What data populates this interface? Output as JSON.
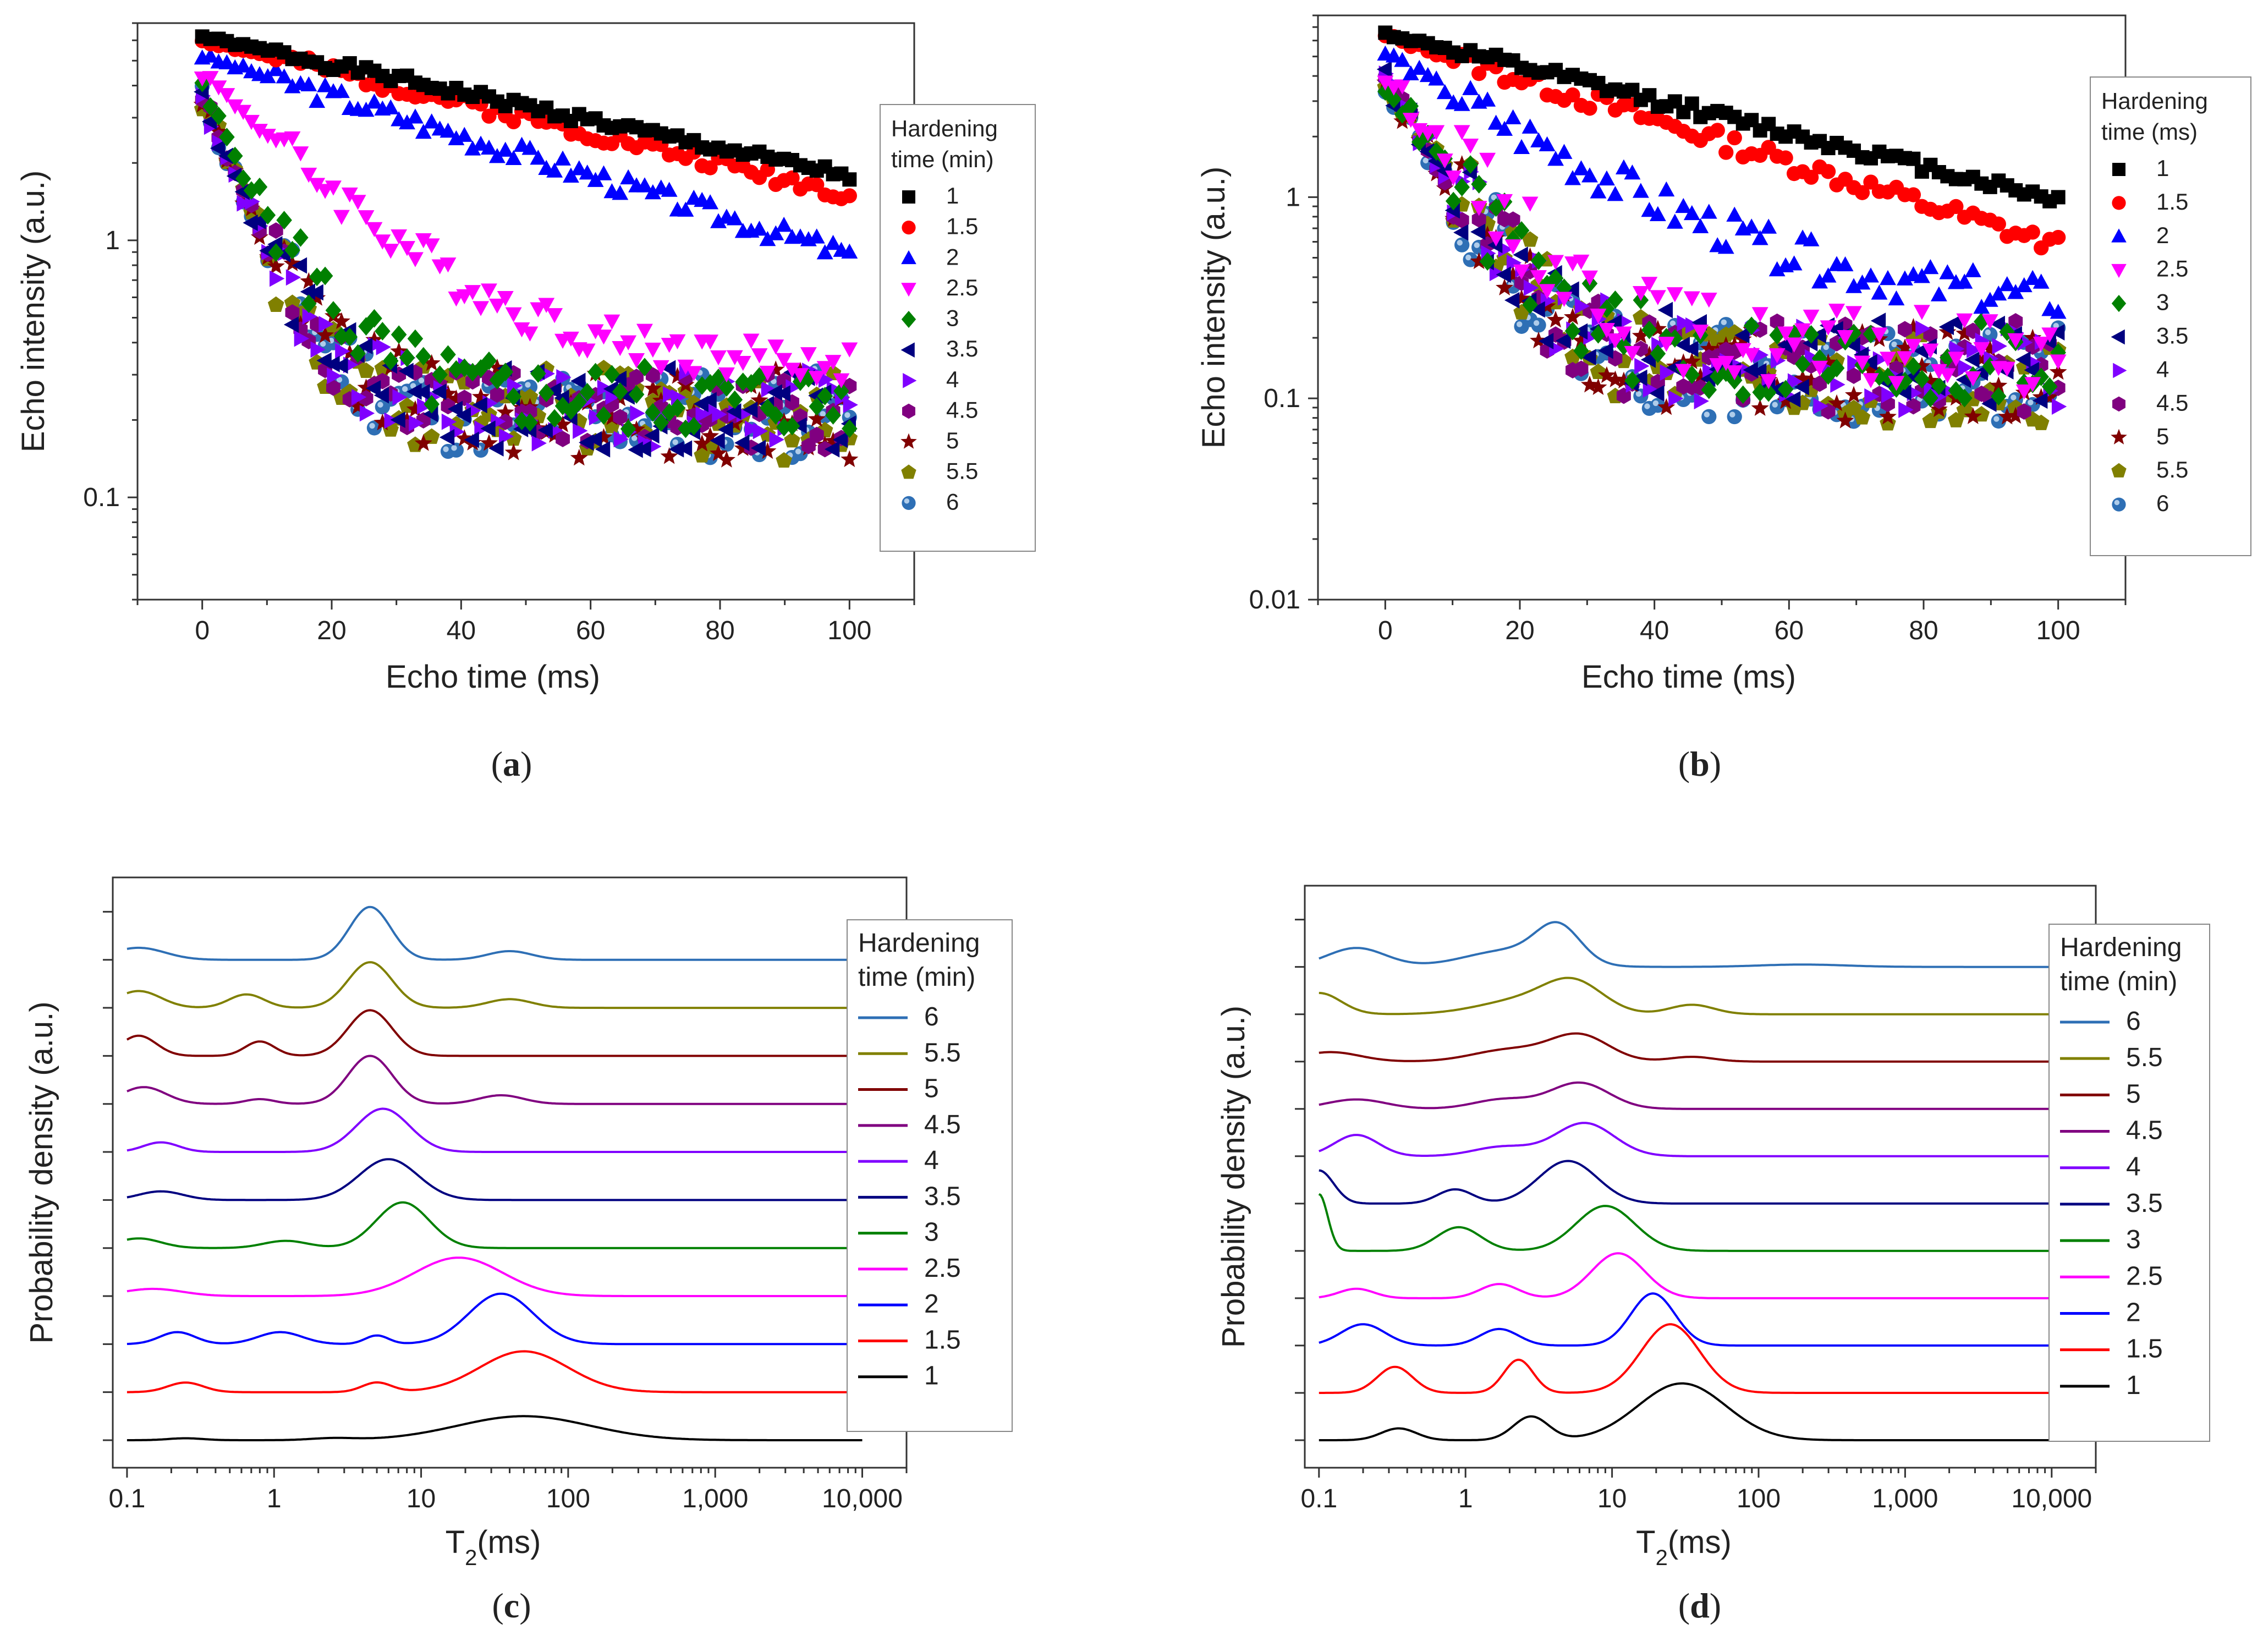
{
  "figure": {
    "panel_labels": [
      "(a)",
      "(b)",
      "(c)",
      "(d)"
    ]
  },
  "series_styles": [
    {
      "label": "1",
      "color": "#000000",
      "marker": "square"
    },
    {
      "label": "1.5",
      "color": "#ff0000",
      "marker": "circle"
    },
    {
      "label": "2",
      "color": "#0000ff",
      "marker": "triangle-up"
    },
    {
      "label": "2.5",
      "color": "#ff00ff",
      "marker": "triangle-down"
    },
    {
      "label": "3",
      "color": "#008000",
      "marker": "diamond"
    },
    {
      "label": "3.5",
      "color": "#000080",
      "marker": "triangle-left"
    },
    {
      "label": "4",
      "color": "#8000ff",
      "marker": "triangle-right"
    },
    {
      "label": "4.5",
      "color": "#800080",
      "marker": "hexagon"
    },
    {
      "label": "5",
      "color": "#800000",
      "marker": "star"
    },
    {
      "label": "5.5",
      "color": "#808000",
      "marker": "pentagon"
    },
    {
      "label": "6",
      "color": "#2e6fb5",
      "marker": "sphere"
    }
  ],
  "chart_data": [
    {
      "id": "a",
      "type": "scatter",
      "xlabel": "Echo time (ms)",
      "ylabel": "Echo intensity (a.u.)",
      "xlim": [
        -10,
        110
      ],
      "ylim": [
        0.04,
        7
      ],
      "yscale": "log",
      "xticks": [
        0,
        20,
        40,
        60,
        80,
        100
      ],
      "yticks": [
        {
          "v": 0.1,
          "label": "0.1"
        },
        {
          "v": 1,
          "label": "1"
        }
      ],
      "legend": {
        "title": [
          "Hardening",
          "time (min)"
        ],
        "position": "right"
      },
      "series": [
        {
          "name": "1",
          "start": 6.2,
          "plateau": 0,
          "k": 0.0125,
          "noise": 0.02,
          "seed": 1
        },
        {
          "name": "1.5",
          "start": 6.0,
          "plateau": 0,
          "k": 0.0138,
          "noise": 0.03,
          "seed": 2
        },
        {
          "name": "2",
          "start": 5.2,
          "plateau": 0,
          "k": 0.0178,
          "noise": 0.04,
          "seed": 3
        },
        {
          "name": "2.5",
          "start": 4.5,
          "plateau": 0.32,
          "k": 0.06,
          "noise": 0.08,
          "seed": 4
        },
        {
          "name": "3",
          "start": 3.8,
          "plateau": 0.24,
          "k": 0.12,
          "noise": 0.14,
          "seed": 5
        },
        {
          "name": "3.5",
          "start": 3.6,
          "plateau": 0.22,
          "k": 0.15,
          "noise": 0.16,
          "seed": 6
        },
        {
          "name": "4",
          "start": 3.6,
          "plateau": 0.22,
          "k": 0.15,
          "noise": 0.16,
          "seed": 7
        },
        {
          "name": "4.5",
          "start": 3.6,
          "plateau": 0.22,
          "k": 0.15,
          "noise": 0.16,
          "seed": 8
        },
        {
          "name": "5",
          "start": 3.6,
          "plateau": 0.21,
          "k": 0.15,
          "noise": 0.18,
          "seed": 9
        },
        {
          "name": "5.5",
          "start": 3.6,
          "plateau": 0.21,
          "k": 0.15,
          "noise": 0.18,
          "seed": 10
        },
        {
          "name": "6",
          "start": 3.6,
          "plateau": 0.21,
          "k": 0.15,
          "noise": 0.18,
          "seed": 11
        }
      ]
    },
    {
      "id": "b",
      "type": "scatter",
      "xlabel": "Echo time (ms)",
      "ylabel": "Echo intensity (a.u.)",
      "xlim": [
        -10,
        110
      ],
      "ylim": [
        0.01,
        8
      ],
      "yscale": "log",
      "xticks": [
        0,
        20,
        40,
        60,
        80,
        100
      ],
      "yticks": [
        {
          "v": 0.01,
          "label": "0.01"
        },
        {
          "v": 0.1,
          "label": "0.1"
        },
        {
          "v": 1,
          "label": "1"
        }
      ],
      "legend": {
        "title": [
          "Hardening",
          "time (ms)"
        ],
        "position": "right"
      },
      "series": [
        {
          "name": "1",
          "start": 6.5,
          "plateau": 0,
          "k": 0.019,
          "noise": 0.03,
          "seed": 12
        },
        {
          "name": "1.5",
          "start": 6.3,
          "plateau": 0,
          "k": 0.024,
          "noise": 0.05,
          "seed": 13
        },
        {
          "name": "2",
          "start": 5.2,
          "plateau": 0.28,
          "k": 0.05,
          "noise": 0.1,
          "seed": 14
        },
        {
          "name": "2.5",
          "start": 4.0,
          "plateau": 0.17,
          "k": 0.1,
          "noise": 0.2,
          "seed": 15
        },
        {
          "name": "3",
          "start": 3.8,
          "plateau": 0.15,
          "k": 0.12,
          "noise": 0.22,
          "seed": 16
        },
        {
          "name": "3.5",
          "start": 3.8,
          "plateau": 0.15,
          "k": 0.13,
          "noise": 0.22,
          "seed": 17
        },
        {
          "name": "4",
          "start": 3.8,
          "plateau": 0.14,
          "k": 0.13,
          "noise": 0.22,
          "seed": 18
        },
        {
          "name": "4.5",
          "start": 3.8,
          "plateau": 0.14,
          "k": 0.13,
          "noise": 0.24,
          "seed": 19
        },
        {
          "name": "5",
          "start": 3.8,
          "plateau": 0.13,
          "k": 0.13,
          "noise": 0.24,
          "seed": 20
        },
        {
          "name": "5.5",
          "start": 3.8,
          "plateau": 0.13,
          "k": 0.13,
          "noise": 0.24,
          "seed": 21
        },
        {
          "name": "6",
          "start": 3.8,
          "plateau": 0.13,
          "k": 0.13,
          "noise": 0.24,
          "seed": 22
        }
      ]
    },
    {
      "id": "c",
      "type": "line",
      "xlabel": "T2(ms)",
      "ylabel": "Probability density (a.u.)",
      "xscale": "log",
      "xlim": [
        0.08,
        20000
      ],
      "xticks": [
        {
          "v": 0.1,
          "label": "0.1"
        },
        {
          "v": 1,
          "label": "1"
        },
        {
          "v": 10,
          "label": "10"
        },
        {
          "v": 100,
          "label": "100"
        },
        {
          "v": 1000,
          "label": "1,000"
        },
        {
          "v": 10000,
          "label": "10,000"
        }
      ],
      "legend": {
        "title": [
          "Hardening",
          "time (min)"
        ],
        "position": "right"
      },
      "series": [
        {
          "name": "1",
          "baseline": 0.0,
          "peaks": [
            [
              0.25,
              0.04,
              0.12
            ],
            [
              2.5,
              0.04,
              0.15
            ],
            [
              50,
              0.5,
              0.45
            ]
          ]
        },
        {
          "name": "1.5",
          "baseline": 1.0,
          "peaks": [
            [
              0.25,
              0.2,
              0.12
            ],
            [
              5,
              0.2,
              0.1
            ],
            [
              50,
              0.85,
              0.3
            ]
          ]
        },
        {
          "name": "2",
          "baseline": 2.0,
          "peaks": [
            [
              0.22,
              0.25,
              0.12
            ],
            [
              1.1,
              0.25,
              0.15
            ],
            [
              5,
              0.18,
              0.08
            ],
            [
              35,
              1.05,
              0.22
            ]
          ]
        },
        {
          "name": "2.5",
          "baseline": 3.0,
          "peaks": [
            [
              0.15,
              0.15,
              0.2
            ],
            [
              18,
              0.8,
              0.3
            ]
          ]
        },
        {
          "name": "3",
          "baseline": 4.0,
          "peaks": [
            [
              0.12,
              0.2,
              0.15
            ],
            [
              1.2,
              0.15,
              0.15
            ],
            [
              7.5,
              0.95,
              0.18
            ]
          ]
        },
        {
          "name": "3.5",
          "baseline": 5.0,
          "peaks": [
            [
              0.17,
              0.18,
              0.15
            ],
            [
              6,
              0.85,
              0.2
            ]
          ]
        },
        {
          "name": "4",
          "baseline": 6.0,
          "peaks": [
            [
              0.17,
              0.2,
              0.12
            ],
            [
              5.5,
              0.9,
              0.18
            ]
          ]
        },
        {
          "name": "4.5",
          "baseline": 7.0,
          "peaks": [
            [
              0.13,
              0.35,
              0.15
            ],
            [
              0.8,
              0.1,
              0.1
            ],
            [
              4.5,
              1.0,
              0.15
            ],
            [
              35,
              0.18,
              0.15
            ]
          ]
        },
        {
          "name": "5",
          "baseline": 8.0,
          "peaks": [
            [
              0.12,
              0.42,
              0.12
            ],
            [
              0.8,
              0.3,
              0.1
            ],
            [
              4.5,
              0.95,
              0.15
            ]
          ]
        },
        {
          "name": "5.5",
          "baseline": 9.0,
          "peaks": [
            [
              0.12,
              0.35,
              0.15
            ],
            [
              0.65,
              0.28,
              0.12
            ],
            [
              4.5,
              0.95,
              0.15
            ],
            [
              40,
              0.18,
              0.15
            ]
          ]
        },
        {
          "name": "6",
          "baseline": 10.0,
          "peaks": [
            [
              0.12,
              0.25,
              0.18
            ],
            [
              4.5,
              1.1,
              0.14
            ],
            [
              40,
              0.18,
              0.15
            ]
          ]
        }
      ]
    },
    {
      "id": "d",
      "type": "line",
      "xlabel": "T2(ms)",
      "ylabel": "Probability density (a.u.)",
      "xscale": "log",
      "xlim": [
        0.08,
        20000
      ],
      "xticks": [
        {
          "v": 0.1,
          "label": "0.1"
        },
        {
          "v": 1,
          "label": "1"
        },
        {
          "v": 10,
          "label": "10"
        },
        {
          "v": 100,
          "label": "100"
        },
        {
          "v": 1000,
          "label": "1,000"
        },
        {
          "v": 10000,
          "label": "10,000"
        }
      ],
      "legend": {
        "title": [
          "Hardening",
          "time (min)"
        ],
        "position": "right"
      },
      "series": [
        {
          "name": "1",
          "baseline": 0.0,
          "peaks": [
            [
              0.35,
              0.25,
              0.12
            ],
            [
              2.8,
              0.5,
              0.12
            ],
            [
              30,
              1.2,
              0.3
            ]
          ]
        },
        {
          "name": "1.5",
          "baseline": 1.0,
          "peaks": [
            [
              0.33,
              0.55,
              0.12
            ],
            [
              2.3,
              0.7,
              0.1
            ],
            [
              25,
              1.45,
              0.2
            ]
          ]
        },
        {
          "name": "2",
          "baseline": 2.0,
          "peaks": [
            [
              0.2,
              0.45,
              0.15
            ],
            [
              1.7,
              0.35,
              0.13
            ],
            [
              19,
              1.1,
              0.15
            ]
          ]
        },
        {
          "name": "2.5",
          "baseline": 3.0,
          "peaks": [
            [
              0.18,
              0.2,
              0.12
            ],
            [
              1.7,
              0.3,
              0.13
            ],
            [
              11,
              0.95,
              0.18
            ]
          ]
        },
        {
          "name": "3",
          "baseline": 4.0,
          "peaks": [
            [
              0.1,
              1.2,
              0.06
            ],
            [
              0.9,
              0.5,
              0.15
            ],
            [
              9,
              0.95,
              0.2
            ]
          ]
        },
        {
          "name": "3.5",
          "baseline": 5.0,
          "peaks": [
            [
              0.1,
              0.7,
              0.1
            ],
            [
              0.85,
              0.3,
              0.12
            ],
            [
              5,
              0.9,
              0.2
            ]
          ]
        },
        {
          "name": "4",
          "baseline": 6.0,
          "peaks": [
            [
              0.18,
              0.45,
              0.15
            ],
            [
              1.8,
              0.2,
              0.2
            ],
            [
              6.5,
              0.7,
              0.2
            ]
          ]
        },
        {
          "name": "4.5",
          "baseline": 7.0,
          "peaks": [
            [
              0.18,
              0.2,
              0.2
            ],
            [
              1.8,
              0.2,
              0.2
            ],
            [
              6,
              0.55,
              0.2
            ]
          ]
        },
        {
          "name": "5",
          "baseline": 8.0,
          "peaks": [
            [
              0.12,
              0.2,
              0.2
            ],
            [
              2.0,
              0.25,
              0.25
            ],
            [
              6,
              0.55,
              0.2
            ],
            [
              35,
              0.1,
              0.15
            ]
          ]
        },
        {
          "name": "5.5",
          "baseline": 9.0,
          "peaks": [
            [
              0.1,
              0.45,
              0.15
            ],
            [
              2.5,
              0.3,
              0.3
            ],
            [
              5.5,
              0.6,
              0.2
            ],
            [
              35,
              0.2,
              0.15
            ]
          ]
        },
        {
          "name": "6",
          "baseline": 10.0,
          "peaks": [
            [
              0.18,
              0.4,
              0.2
            ],
            [
              2.0,
              0.35,
              0.3
            ],
            [
              4.3,
              0.75,
              0.15
            ],
            [
              200,
              0.05,
              0.3
            ]
          ]
        }
      ]
    }
  ]
}
